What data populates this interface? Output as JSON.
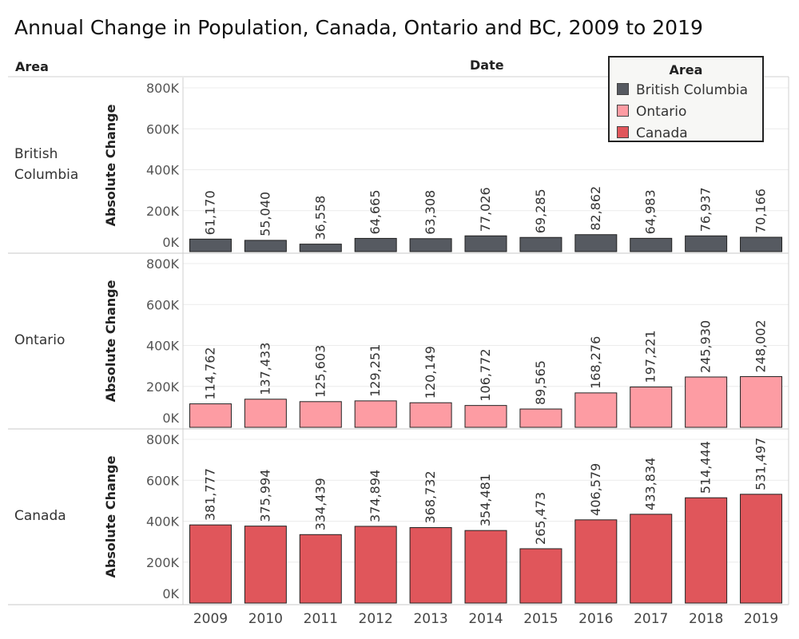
{
  "title": "Annual Change in Population, Canada, Ontario and BC, 2009 to 2019",
  "headers": {
    "area": "Area",
    "date": "Date"
  },
  "legend": {
    "title": "Area",
    "items": [
      {
        "label": "British Columbia",
        "color": "#565a61"
      },
      {
        "label": "Ontario",
        "color": "#fd9ca3"
      },
      {
        "label": "Canada",
        "color": "#e0565b"
      }
    ]
  },
  "chart_data": {
    "type": "bar",
    "categories": [
      "2009",
      "2010",
      "2011",
      "2012",
      "2013",
      "2014",
      "2015",
      "2016",
      "2017",
      "2018",
      "2019"
    ],
    "ylabel": "Absolute Change",
    "ylim": [
      0,
      800000
    ],
    "yticks": [
      "0K",
      "200K",
      "400K",
      "600K",
      "800K"
    ],
    "grid": true,
    "legend_position": "top-right",
    "series": [
      {
        "name": "British Columbia",
        "color": "#565a61",
        "values": [
          61170,
          55040,
          36558,
          64665,
          63308,
          77026,
          69285,
          82862,
          64983,
          76937,
          70166
        ],
        "labels": [
          "61,170",
          "55,040",
          "36,558",
          "64,665",
          "63,308",
          "77,026",
          "69,285",
          "82,862",
          "64,983",
          "76,937",
          "70,166"
        ]
      },
      {
        "name": "Ontario",
        "color": "#fd9ca3",
        "values": [
          114762,
          137433,
          125603,
          129251,
          120149,
          106772,
          89565,
          168276,
          197221,
          245930,
          248002
        ],
        "labels": [
          "114,762",
          "137,433",
          "125,603",
          "129,251",
          "120,149",
          "106,772",
          "89,565",
          "168,276",
          "197,221",
          "245,930",
          "248,002"
        ]
      },
      {
        "name": "Canada",
        "color": "#e0565b",
        "values": [
          381777,
          375994,
          334439,
          374894,
          368732,
          354481,
          265473,
          406579,
          433834,
          514444,
          531497
        ],
        "labels": [
          "381,777",
          "375,994",
          "334,439",
          "374,894",
          "368,732",
          "354,481",
          "265,473",
          "406,579",
          "433,834",
          "514,444",
          "531,497"
        ]
      }
    ]
  }
}
